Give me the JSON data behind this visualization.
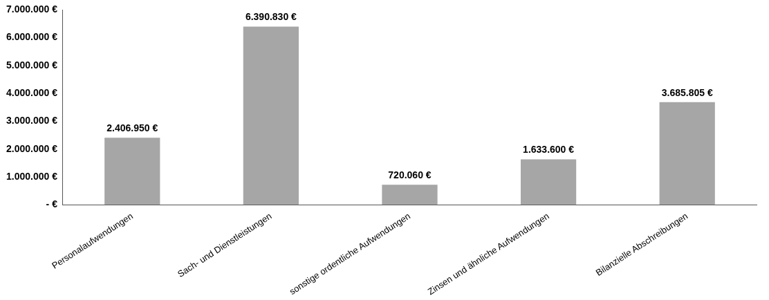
{
  "chart_data": {
    "type": "bar",
    "categories": [
      "Personalaufwendungen",
      "Sach- und Dienstleistungen",
      "sonstige ordentliche Aufwendungen",
      "Zinsen und ähnliche Aufwendungen",
      "Bilanzielle Abschreibungen"
    ],
    "values": [
      2406950,
      6390830,
      720060,
      1633600,
      3685805
    ],
    "value_labels": [
      "2.406.950 €",
      "6.390.830 €",
      "720.060 €",
      "1.633.600 €",
      "3.685.805 €"
    ],
    "color": "#a6a6a6",
    "ylim": [
      0,
      7000000
    ],
    "yticks": [
      {
        "value": 0,
        "label": "- €"
      },
      {
        "value": 1000000,
        "label": "1.000.000 €"
      },
      {
        "value": 2000000,
        "label": "2.000.000 €"
      },
      {
        "value": 3000000,
        "label": "3.000.000 €"
      },
      {
        "value": 4000000,
        "label": "4.000.000 €"
      },
      {
        "value": 5000000,
        "label": "5.000.000 €"
      },
      {
        "value": 6000000,
        "label": "6.000.000 €"
      },
      {
        "value": 7000000,
        "label": "7.000.000 €"
      }
    ]
  }
}
